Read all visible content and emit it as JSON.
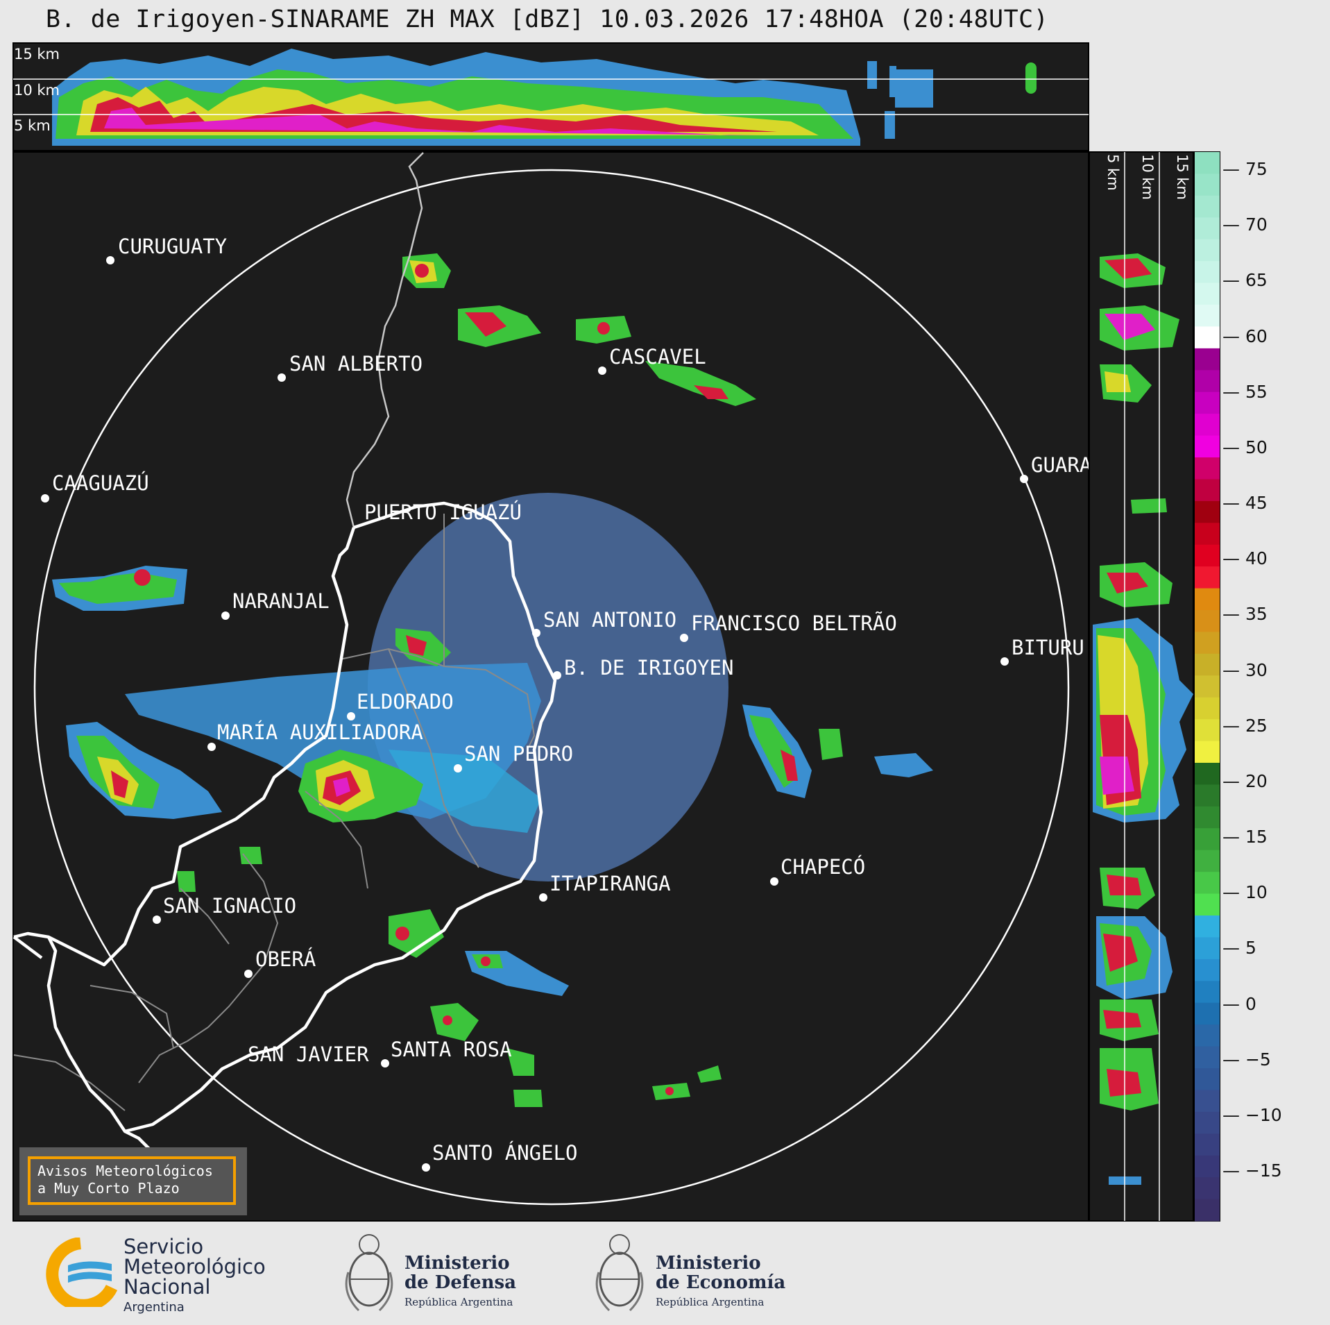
{
  "title": "B. de Irigoyen-SINARAME ZH MAX [dBZ] 10.03.2026 17:48HOA (20:48UTC)",
  "height_labels_top": [
    "15 km",
    "10 km",
    "5 km"
  ],
  "height_labels_side": [
    "5 km",
    "10 km",
    "15 km"
  ],
  "colorbar": {
    "ticks": [
      "75",
      "70",
      "65",
      "60",
      "55",
      "50",
      "45",
      "40",
      "35",
      "30",
      "25",
      "20",
      "15",
      "10",
      "5",
      "0",
      "−5",
      "−10",
      "−15"
    ]
  },
  "cities": [
    {
      "name": "CURUGUATY"
    },
    {
      "name": "SAN ALBERTO"
    },
    {
      "name": "CASCAVEL"
    },
    {
      "name": "CAAGUAZÚ"
    },
    {
      "name": "GUARA"
    },
    {
      "name": "PUERTO IGUAZÚ"
    },
    {
      "name": "NARANJAL"
    },
    {
      "name": "SAN ANTONIO"
    },
    {
      "name": "FRANCISCO BELTRÃO"
    },
    {
      "name": "B. DE IRIGOYEN"
    },
    {
      "name": "BITURU"
    },
    {
      "name": "ELDORADO"
    },
    {
      "name": "MARÍA AUXILIADORA"
    },
    {
      "name": "SAN PEDRO"
    },
    {
      "name": "ITAPIRANGA"
    },
    {
      "name": "CHAPECÓ"
    },
    {
      "name": "SAN IGNACIO"
    },
    {
      "name": "OBERÁ"
    },
    {
      "name": "SAN JAVIER"
    },
    {
      "name": "SANTA ROSA"
    },
    {
      "name": "SANTO ÁNGELO"
    }
  ],
  "warning": {
    "line1": "Avisos Meteorológicos",
    "line2": "a Muy Corto Plazo"
  },
  "footer": {
    "smn_line1": "Servicio",
    "smn_line2": "Meteorológico",
    "smn_line3": "Nacional",
    "smn_line4": "Argentina",
    "defensa_line1": "Ministerio",
    "defensa_line2": "de Defensa",
    "defensa_line3": "República Argentina",
    "economia_line1": "Ministerio",
    "economia_line2": "de Economía",
    "economia_line3": "República Argentina"
  },
  "colors": {
    "background": "#e8e8e8",
    "map_bg": "#1c1c1c",
    "range_ring": "#ffffff",
    "border_main": "#ffffff",
    "border_minor": "#8a8a8a",
    "river": "#c8c8c8",
    "warning_border": "#f5a000",
    "smn_blue": "#3aa0d8",
    "smn_orange": "#f5a800"
  }
}
